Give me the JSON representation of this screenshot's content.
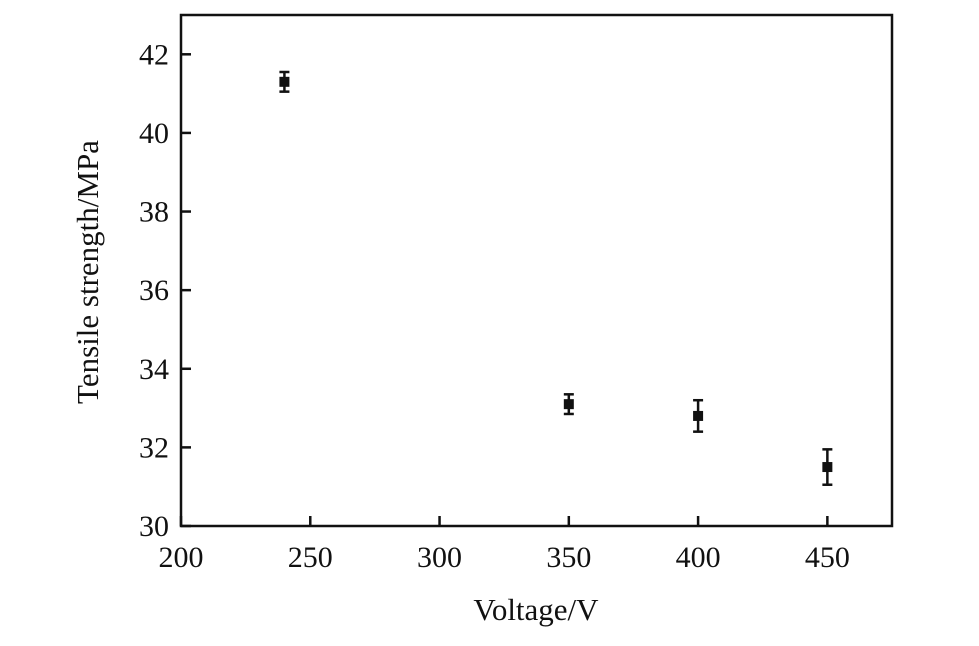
{
  "chart_data": {
    "type": "scatter",
    "title": "",
    "xlabel": "Voltage/V",
    "ylabel": "Tensile strength/MPa",
    "xlim": [
      200,
      475
    ],
    "ylim": [
      30,
      43
    ],
    "xticks": [
      200,
      250,
      300,
      350,
      400,
      450
    ],
    "yticks": [
      30,
      32,
      34,
      36,
      38,
      40,
      42
    ],
    "xtick_labels": [
      "200",
      "250",
      "300",
      "350",
      "400",
      "450"
    ],
    "ytick_labels": [
      "30",
      "32",
      "34",
      "36",
      "38",
      "40",
      "42"
    ],
    "grid": false,
    "legend": false,
    "series": [
      {
        "x": [
          240,
          350,
          400,
          450
        ],
        "y": [
          41.3,
          33.1,
          32.8,
          31.5
        ],
        "error": [
          0.25,
          0.25,
          0.4,
          0.45
        ]
      }
    ],
    "colors": {
      "axis": "#111111",
      "marker": "#111111"
    }
  }
}
